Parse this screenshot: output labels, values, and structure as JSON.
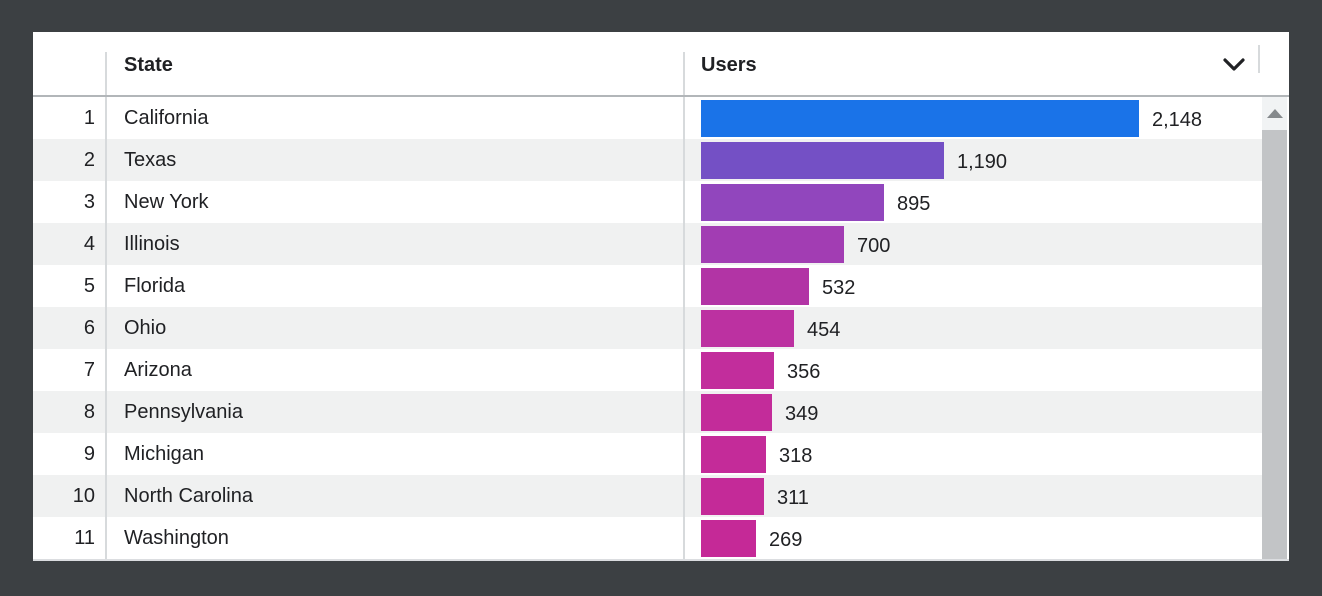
{
  "header": {
    "state_label": "State",
    "users_label": "Users",
    "sort_icon": "chevron-down-icon"
  },
  "chart_data": {
    "type": "bar",
    "orientation": "horizontal",
    "title": "",
    "xlabel": "Users",
    "ylabel": "State",
    "xlim": [
      0,
      2148
    ],
    "grid": false,
    "legend": false,
    "ranks": [
      "1",
      "2",
      "3",
      "4",
      "5",
      "6",
      "7",
      "8",
      "9",
      "10",
      "11"
    ],
    "categories": [
      "California",
      "Texas",
      "New York",
      "Illinois",
      "Florida",
      "Ohio",
      "Arizona",
      "Pennsylvania",
      "Michigan",
      "North Carolina",
      "Washington"
    ],
    "values": [
      2148,
      1190,
      895,
      700,
      532,
      454,
      356,
      349,
      318,
      311,
      269
    ],
    "value_labels": [
      "2,148",
      "1,190",
      "895",
      "700",
      "532",
      "454",
      "356",
      "349",
      "318",
      "311",
      "269"
    ],
    "bar_colors": [
      "#1a73e8",
      "#7450c5",
      "#9146bd",
      "#a23db3",
      "#b234a5",
      "#bc31a1",
      "#c22d9c",
      "#c32c9a",
      "#c42b99",
      "#c42a98",
      "#c52997"
    ]
  },
  "scrollbar": {
    "up_icon": "triangle-up-icon"
  },
  "colors": {
    "page_background": "#3c4043",
    "card_background": "#ffffff",
    "row_stripe": "#f0f1f1",
    "header_border": "#b2b6b9",
    "column_divider": "#d7dadc",
    "text": "#202124",
    "scrollbar_track": "#f1f3f4",
    "scrollbar_thumb": "#c2c4c6",
    "scroll_arrow": "#85898c",
    "bottom_strip": "#dbdde0",
    "top_bar_blue": "#1a73e8",
    "bottom_bar_magenta": "#c52997"
  }
}
